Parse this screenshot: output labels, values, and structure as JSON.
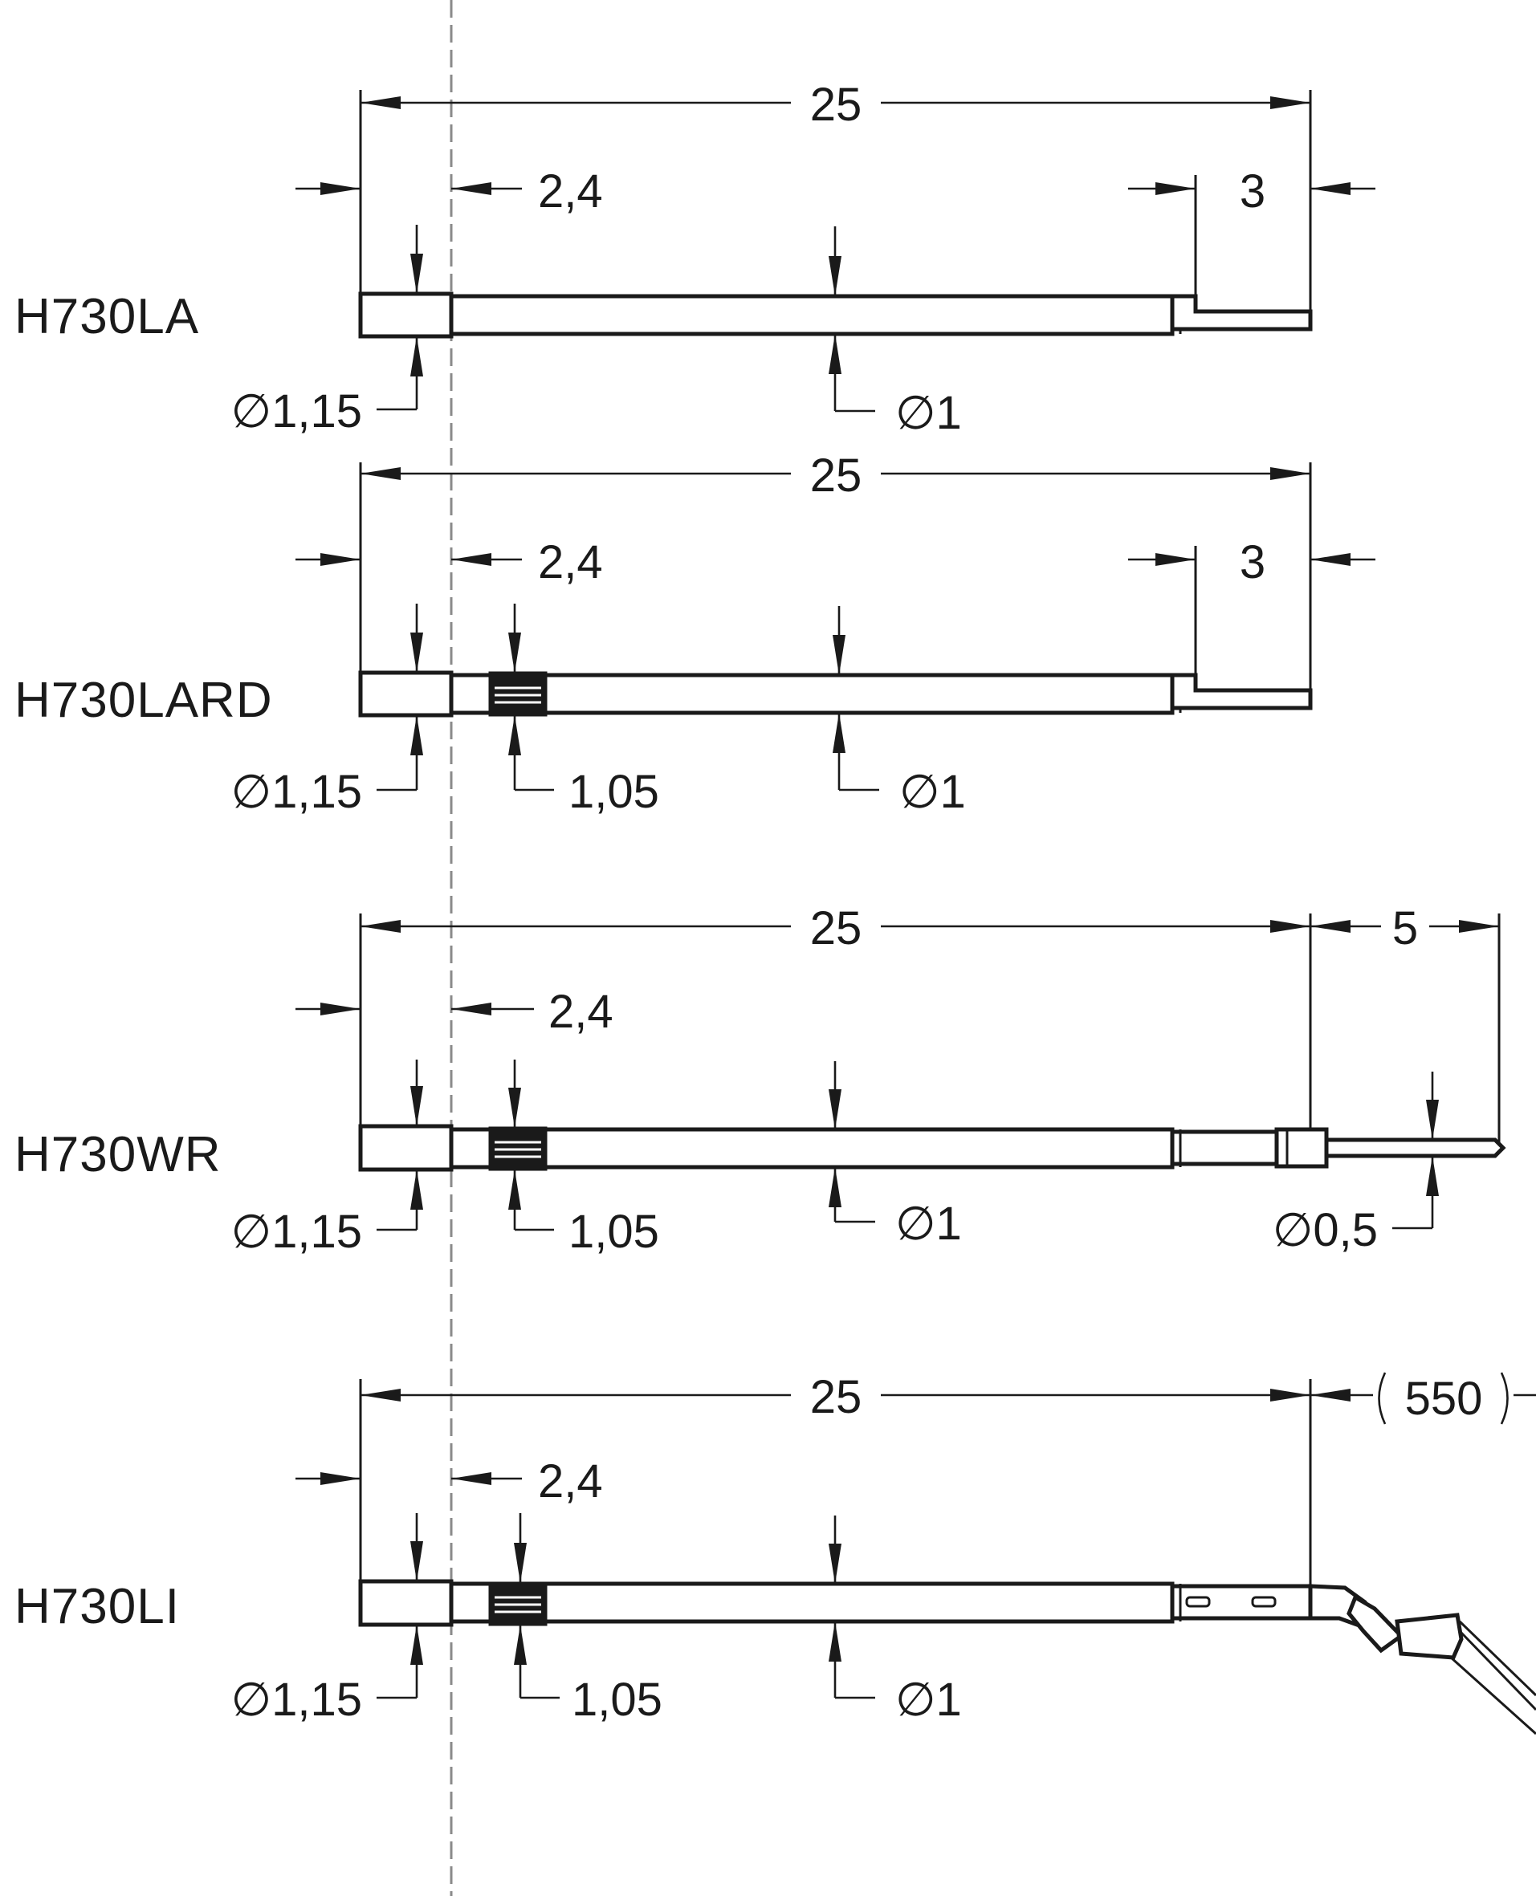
{
  "center_line": "dashed",
  "parts": [
    {
      "model": "H730LA",
      "overall_length": "25",
      "left_offset": "2,4",
      "tip_length": "3",
      "head_diameter": "∅1,15",
      "shaft_diameter": "∅1"
    },
    {
      "model": "H730LARD",
      "overall_length": "25",
      "left_offset": "2,4",
      "tip_length": "3",
      "head_diameter": "∅1,15",
      "knurl_diameter": "1,05",
      "shaft_diameter": "∅1"
    },
    {
      "model": "H730WR",
      "overall_length": "25",
      "left_offset": "2,4",
      "tip_length": "5",
      "head_diameter": "∅1,15",
      "knurl_diameter": "1,05",
      "shaft_diameter": "∅1",
      "tip_diameter": "∅0,5"
    },
    {
      "model": "H730LI",
      "overall_length": "25",
      "left_offset": "2,4",
      "cable_length": "550",
      "head_diameter": "∅1,15",
      "knurl_diameter": "1,05",
      "shaft_diameter": "∅1"
    }
  ]
}
